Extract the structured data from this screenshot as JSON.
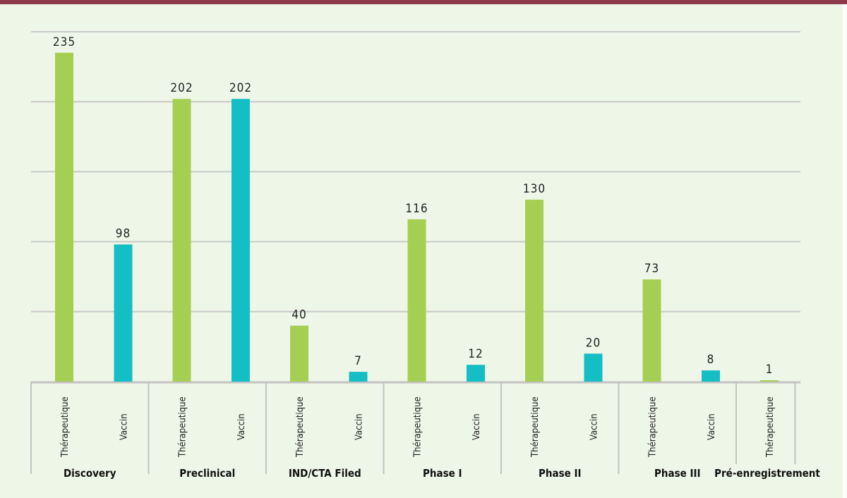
{
  "chart_data": {
    "type": "bar",
    "title": "",
    "xlabel": "",
    "ylabel": "",
    "ylim": [
      0,
      250
    ],
    "grid": true,
    "gridlines": [
      50,
      100,
      150,
      200,
      250
    ],
    "colors": {
      "Thérapeutique": "#a5cf52",
      "Vaccin": "#13bec5"
    },
    "categories": [
      "Discovery",
      "Preclinical",
      "IND/CTA Filed",
      "Phase I",
      "Phase II",
      "Phase III",
      "Pré-enregistrement"
    ],
    "groups": [
      {
        "category": "Discovery",
        "bars": [
          {
            "type": "Thérapeutique",
            "value": 235
          },
          {
            "type": "Vaccin",
            "value": 98
          }
        ]
      },
      {
        "category": "Preclinical",
        "bars": [
          {
            "type": "Thérapeutique",
            "value": 202
          },
          {
            "type": "Vaccin",
            "value": 202
          }
        ]
      },
      {
        "category": "IND/CTA Filed",
        "bars": [
          {
            "type": "Thérapeutique",
            "value": 40
          },
          {
            "type": "Vaccin",
            "value": 7
          }
        ]
      },
      {
        "category": "Phase I",
        "bars": [
          {
            "type": "Thérapeutique",
            "value": 116
          },
          {
            "type": "Vaccin",
            "value": 12
          }
        ]
      },
      {
        "category": "Phase II",
        "bars": [
          {
            "type": "Thérapeutique",
            "value": 130
          },
          {
            "type": "Vaccin",
            "value": 20
          }
        ]
      },
      {
        "category": "Phase III",
        "bars": [
          {
            "type": "Thérapeutique",
            "value": 73
          },
          {
            "type": "Vaccin",
            "value": 8
          }
        ]
      },
      {
        "category": "Pré-enregistrement",
        "bars": [
          {
            "type": "Thérapeutique",
            "value": 1
          }
        ]
      }
    ]
  }
}
